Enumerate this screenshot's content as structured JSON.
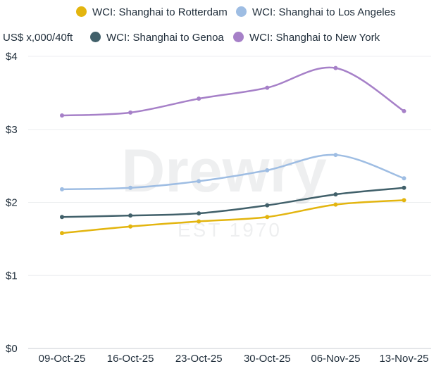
{
  "chart_data": {
    "type": "line",
    "title": "",
    "unit_label": "US$ x,000/40ft",
    "categories": [
      "09-Oct-25",
      "16-Oct-25",
      "23-Oct-25",
      "30-Oct-25",
      "06-Nov-25",
      "13-Nov-25"
    ],
    "ylim": [
      0,
      4
    ],
    "yticks": [
      0,
      1,
      2,
      3,
      4
    ],
    "ytick_labels": [
      "$0",
      "$1",
      "$2",
      "$3",
      "$4"
    ],
    "grid": "horizontal",
    "legend_position": "top",
    "series": [
      {
        "name": "WCI: Shanghai to Rotterdam",
        "color": "#e3b50f",
        "values": [
          1.58,
          1.67,
          1.74,
          1.8,
          1.97,
          2.03
        ]
      },
      {
        "name": "WCI: Shanghai to Los Angeles",
        "color": "#9ebde3",
        "values": [
          2.18,
          2.2,
          2.29,
          2.44,
          2.65,
          2.33
        ]
      },
      {
        "name": "WCI: Shanghai to Genoa",
        "color": "#41606a",
        "values": [
          1.8,
          1.82,
          1.85,
          1.96,
          2.11,
          2.2
        ]
      },
      {
        "name": "WCI: Shanghai to New York",
        "color": "#a680c8",
        "values": [
          3.19,
          3.23,
          3.42,
          3.57,
          3.84,
          3.25
        ]
      }
    ]
  },
  "watermark": {
    "brand": "Drewry",
    "tagline": "EST 1970"
  }
}
